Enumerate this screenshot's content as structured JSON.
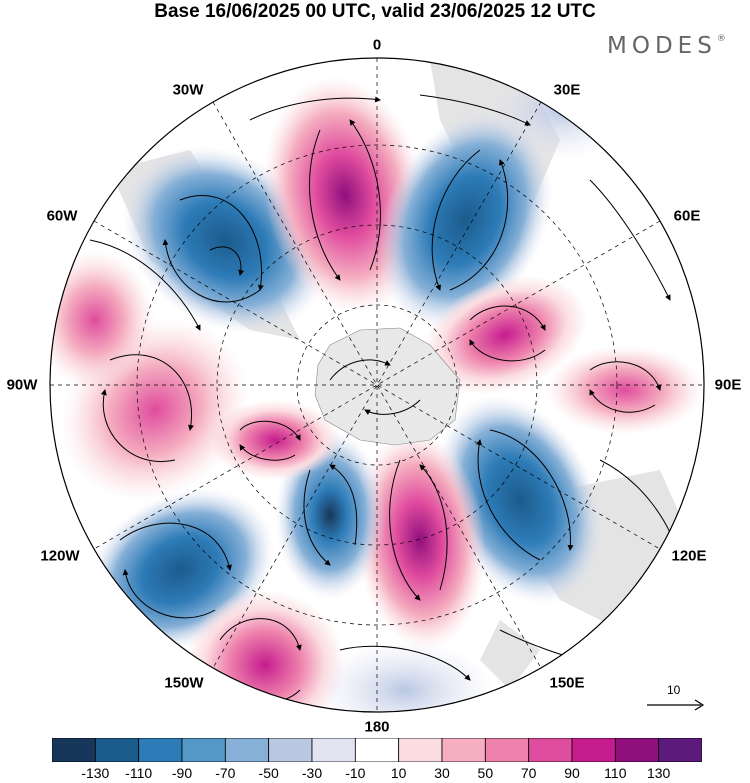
{
  "title": "Base 16/06/2025 00 UTC, valid 23/06/2025 12 UTC",
  "brand": "MODES",
  "brand_mark": "®",
  "lon_labels": {
    "lon_0": "0",
    "lon_30e": "30E",
    "lon_60e": "60E",
    "lon_90e": "90E",
    "lon_120e": "120E",
    "lon_150e": "150E",
    "lon_180": "180",
    "lon_150w": "150W",
    "lon_120w": "120W",
    "lon_90w": "90W",
    "lon_60w": "60W",
    "lon_30w": "30W"
  },
  "colorbar": {
    "ticks": [
      "-130",
      "-110",
      "-90",
      "-70",
      "-50",
      "-30",
      "-10",
      "10",
      "30",
      "50",
      "70",
      "90",
      "110",
      "130"
    ],
    "colors": [
      "#17375a",
      "#1b5b8c",
      "#2d7bb7",
      "#5498c8",
      "#86b0d7",
      "#b9c7e3",
      "#e3e4f2",
      "#ffffff",
      "#fbdde1",
      "#f5afc0",
      "#ee82ac",
      "#e04c9e",
      "#c61c8e",
      "#8f0f7d",
      "#5c1a7b"
    ]
  },
  "vector_reference": "10",
  "colors": {
    "land": "#e4e4e4",
    "antarctica": "#e8e8e8"
  }
}
